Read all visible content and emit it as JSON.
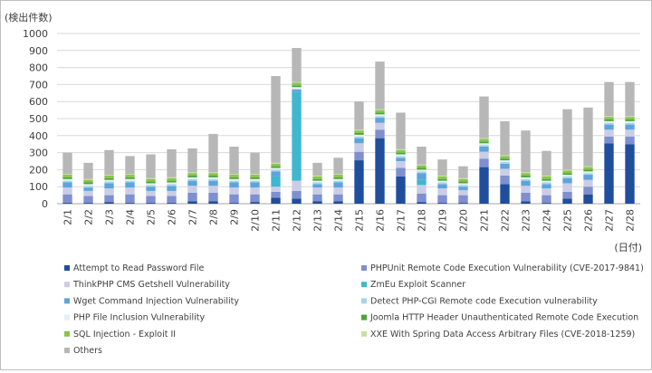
{
  "chart_data": {
    "type": "bar",
    "stacked": true,
    "ylabel": "(検出件数)",
    "xlabel": "(日付)",
    "ylim": [
      0,
      1000
    ],
    "yticks": [
      0,
      100,
      200,
      300,
      400,
      500,
      600,
      700,
      800,
      900,
      1000
    ],
    "grid": true,
    "legend_position": "bottom",
    "categories": [
      "2/1",
      "2/2",
      "2/3",
      "2/4",
      "2/5",
      "2/6",
      "2/7",
      "2/8",
      "2/9",
      "2/10",
      "2/11",
      "2/12",
      "2/13",
      "2/14",
      "2/15",
      "2/16",
      "2/17",
      "2/18",
      "2/19",
      "2/20",
      "2/21",
      "2/22",
      "2/23",
      "2/24",
      "2/25",
      "2/26",
      "2/27",
      "2/28"
    ],
    "series": [
      {
        "name": "Attempt to Read Password File",
        "color": "#1f4e9c",
        "values": [
          5,
          5,
          10,
          5,
          5,
          5,
          15,
          15,
          5,
          10,
          35,
          30,
          15,
          15,
          255,
          385,
          160,
          10,
          5,
          5,
          215,
          115,
          15,
          5,
          30,
          55,
          355,
          350
        ]
      },
      {
        "name": "PHPUnit Remote Code Execution Vulnerability (CVE-2017-9841)",
        "color": "#7f8fcf",
        "values": [
          50,
          40,
          40,
          50,
          40,
          40,
          50,
          50,
          50,
          45,
          35,
          45,
          40,
          40,
          50,
          50,
          50,
          50,
          45,
          45,
          50,
          50,
          50,
          45,
          40,
          45,
          40,
          45
        ]
      },
      {
        "name": "ThinkPHP CMS Getshell Vulnerability",
        "color": "#c9cde6",
        "values": [
          40,
          30,
          40,
          40,
          30,
          30,
          40,
          40,
          40,
          40,
          30,
          60,
          40,
          40,
          50,
          40,
          40,
          50,
          40,
          30,
          40,
          40,
          40,
          40,
          50,
          40,
          40,
          40
        ]
      },
      {
        "name": "ZmEu Exploit Scanner",
        "color": "#3fb7cf",
        "values": [
          0,
          0,
          0,
          0,
          0,
          0,
          0,
          0,
          0,
          0,
          60,
          520,
          0,
          0,
          0,
          0,
          0,
          30,
          0,
          0,
          0,
          0,
          0,
          0,
          0,
          0,
          0,
          0
        ]
      },
      {
        "name": "Wget Command Injection Vulnerability",
        "color": "#5ea4dc",
        "values": [
          30,
          20,
          30,
          30,
          25,
          30,
          30,
          30,
          30,
          30,
          30,
          15,
          20,
          30,
          30,
          30,
          20,
          40,
          25,
          20,
          30,
          30,
          30,
          25,
          30,
          30,
          30,
          30
        ]
      },
      {
        "name": "Detect PHP-CGI Remote code Execution vulnerability",
        "color": "#a8d5e6",
        "values": [
          10,
          10,
          10,
          10,
          10,
          10,
          10,
          10,
          10,
          10,
          10,
          5,
          10,
          10,
          10,
          10,
          10,
          10,
          10,
          10,
          10,
          10,
          10,
          10,
          10,
          10,
          10,
          10
        ]
      },
      {
        "name": "PHP File Inclusion Vulnerability",
        "color": "#e3f0f7",
        "values": [
          10,
          10,
          10,
          10,
          10,
          10,
          10,
          10,
          10,
          10,
          10,
          10,
          10,
          10,
          10,
          10,
          10,
          10,
          10,
          10,
          10,
          10,
          10,
          10,
          10,
          10,
          10,
          10
        ]
      },
      {
        "name": "Joomla HTTP Header Unauthenticated Remote Code Execution",
        "color": "#4ba538",
        "values": [
          10,
          10,
          10,
          10,
          10,
          10,
          10,
          10,
          10,
          10,
          10,
          10,
          10,
          10,
          10,
          10,
          10,
          10,
          10,
          10,
          10,
          10,
          10,
          10,
          10,
          10,
          10,
          10
        ]
      },
      {
        "name": "SQL Injection - Exploit II",
        "color": "#8bc34a",
        "values": [
          15,
          15,
          15,
          15,
          15,
          15,
          15,
          15,
          15,
          15,
          15,
          15,
          15,
          15,
          15,
          15,
          15,
          15,
          15,
          15,
          15,
          15,
          15,
          15,
          15,
          15,
          15,
          15
        ]
      },
      {
        "name": "XXE With Spring Data Access Arbitrary Files (CVE-2018-1259)",
        "color": "#c5e0a5",
        "values": [
          5,
          5,
          5,
          5,
          5,
          5,
          5,
          5,
          5,
          5,
          5,
          5,
          5,
          5,
          5,
          5,
          5,
          5,
          5,
          5,
          5,
          5,
          5,
          5,
          5,
          5,
          5,
          5
        ]
      },
      {
        "name": "Others",
        "color": "#b7b7b7",
        "values": [
          125,
          95,
          145,
          105,
          140,
          165,
          140,
          225,
          160,
          125,
          510,
          200,
          75,
          95,
          165,
          280,
          215,
          105,
          95,
          70,
          245,
          200,
          245,
          145,
          355,
          345,
          200,
          200
        ]
      }
    ]
  }
}
